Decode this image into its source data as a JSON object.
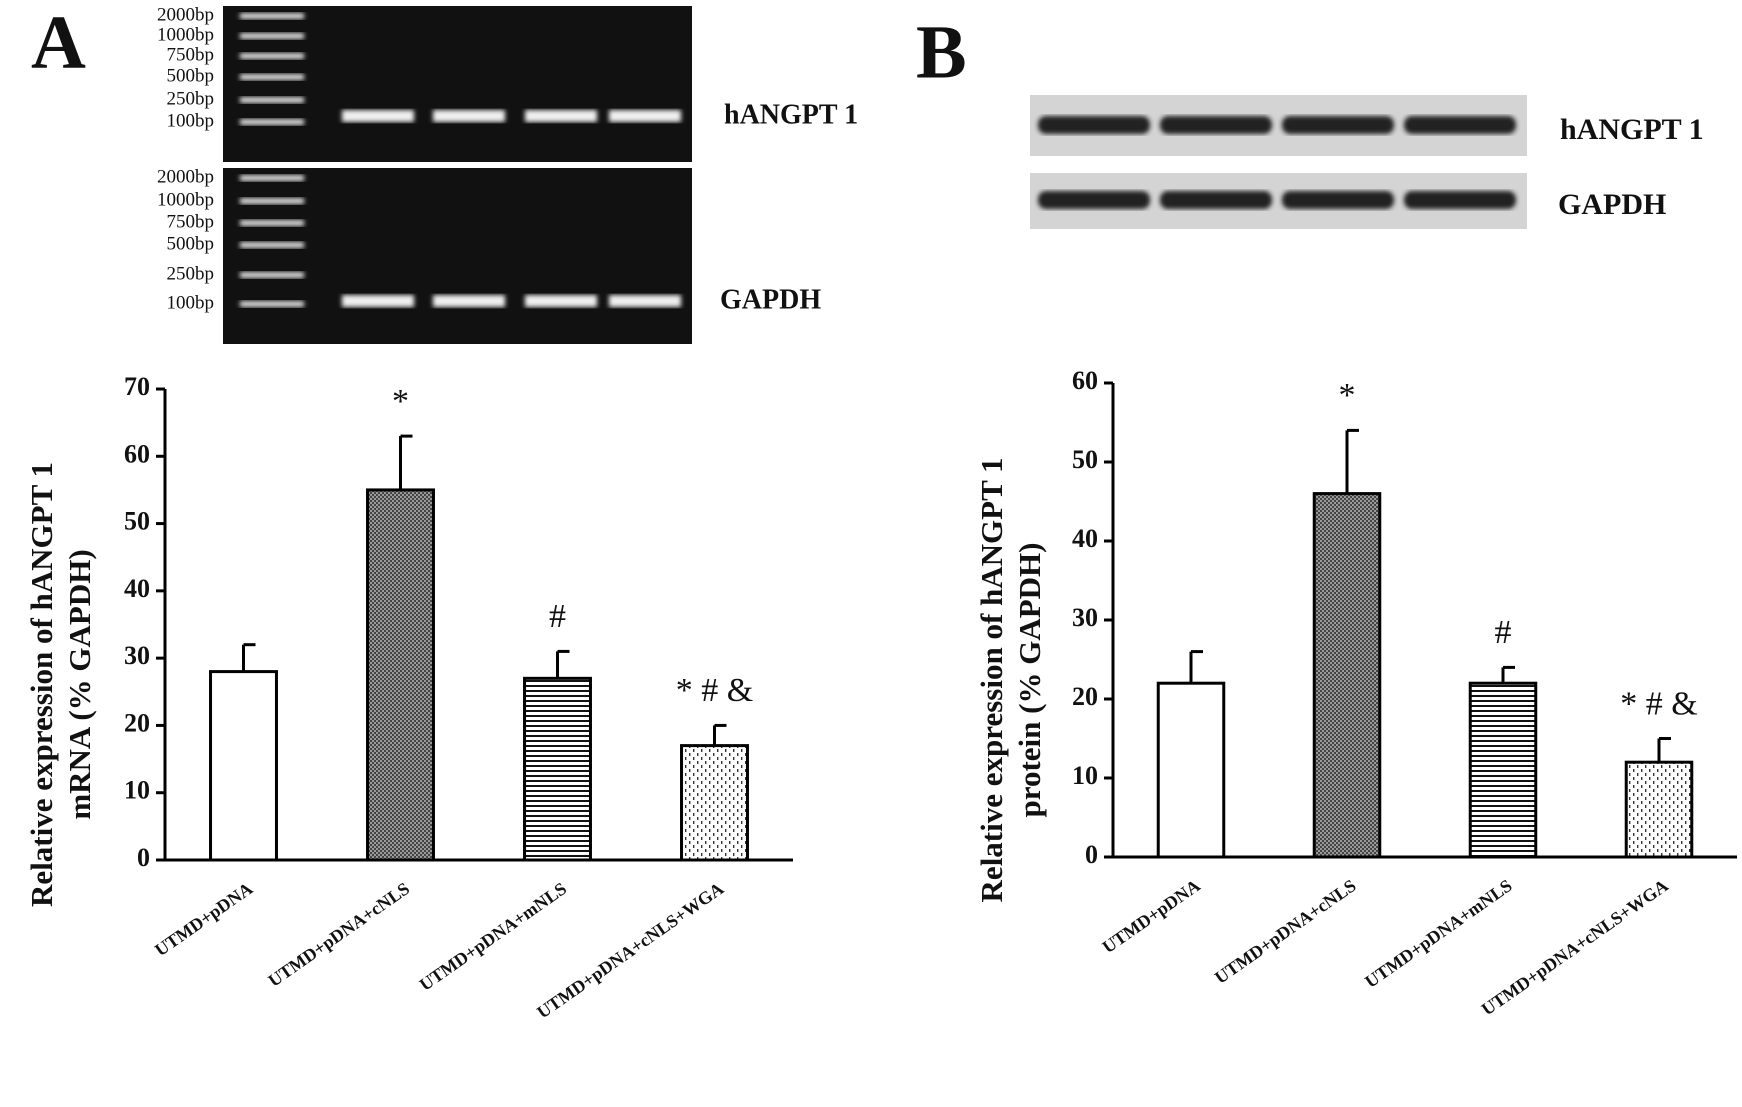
{
  "chart_data": [
    {
      "type": "bar",
      "panel": "A",
      "gels": [
        {
          "ladder": [
            "2000bp",
            "1000bp",
            "750bp",
            "500bp",
            "250bp",
            "100bp"
          ],
          "label": "hANGPT 1"
        },
        {
          "ladder": [
            "2000bp",
            "1000bp",
            "750bp",
            "500bp",
            "250bp",
            "100bp"
          ],
          "label": "GAPDH"
        }
      ],
      "ylabel": [
        "Relative expression of hANGPT 1",
        "mRNA (% GAPDH)"
      ],
      "categories": [
        "UTMD+pDNA",
        "UTMD+pDNA+cNLS",
        "UTMD+pDNA+mNLS",
        "UTMD+pDNA+cNLS+WGA"
      ],
      "values": [
        28,
        55,
        27,
        17
      ],
      "errors": [
        4,
        8,
        4,
        3
      ],
      "annotations": [
        null,
        "*",
        "#",
        "* # &"
      ],
      "patterns": [
        "none",
        "crosshatch",
        "horizontal",
        "dots"
      ],
      "color": "#000000",
      "ylim": [
        0,
        70
      ],
      "yticks": [
        0,
        10,
        20,
        30,
        40,
        50,
        60,
        70
      ]
    },
    {
      "type": "bar",
      "panel": "B",
      "blots": [
        {
          "label": "hANGPT 1"
        },
        {
          "label": "GAPDH"
        }
      ],
      "ylabel": [
        "Relative expression of hANGPT 1",
        "protein (% GAPDH)"
      ],
      "categories": [
        "UTMD+pDNA",
        "UTMD+pDNA+cNLS",
        "UTMD+pDNA+mNLS",
        "UTMD+pDNA+cNLS+WGA"
      ],
      "values": [
        22,
        46,
        22,
        12
      ],
      "errors": [
        4,
        8,
        2,
        3
      ],
      "annotations": [
        null,
        "*",
        "#",
        "* # &"
      ],
      "patterns": [
        "none",
        "crosshatch",
        "horizontal",
        "dots"
      ],
      "color": "#000000",
      "ylim": [
        0,
        60
      ],
      "yticks": [
        0,
        10,
        20,
        30,
        40,
        50,
        60
      ]
    }
  ]
}
